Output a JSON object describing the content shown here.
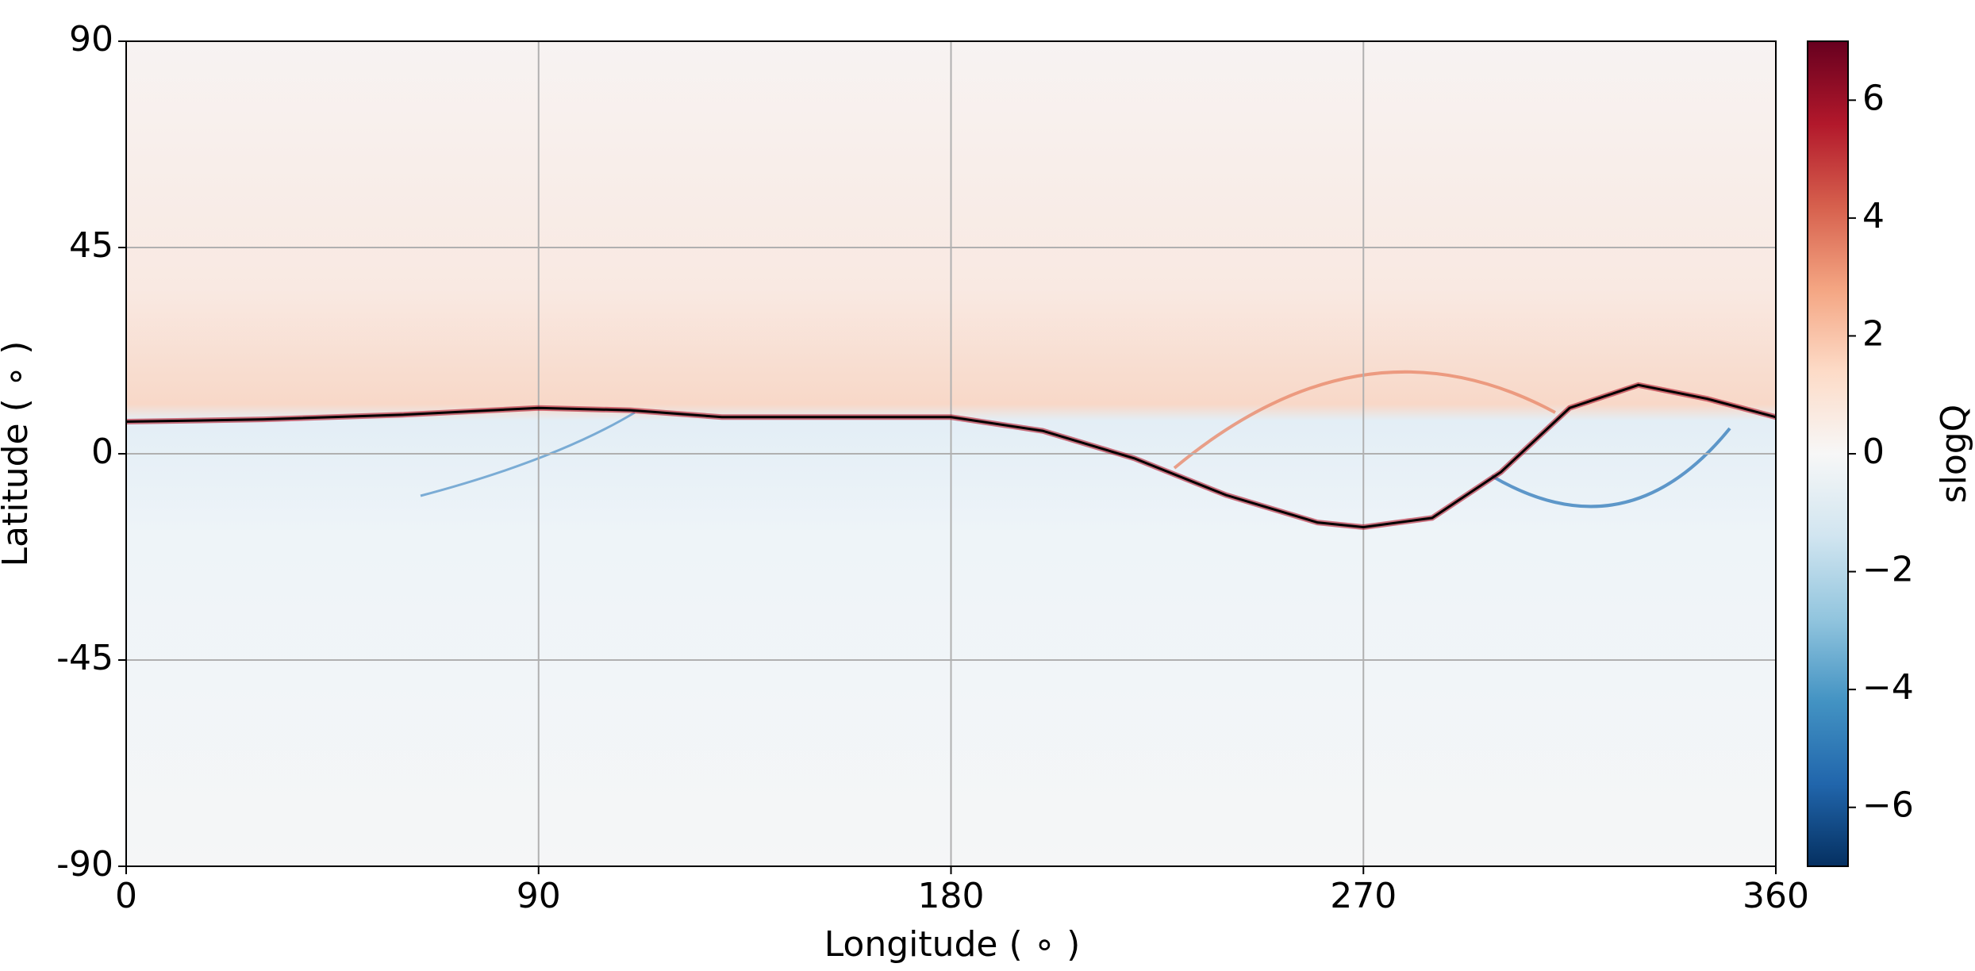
{
  "chart_data": {
    "type": "image",
    "xlabel": "Longitude ( ∘ )",
    "ylabel": "Latitude ( ∘ )",
    "xlim": [
      0,
      360
    ],
    "xticks": [
      0,
      90,
      180,
      270,
      360
    ],
    "ylim": [
      -90,
      90
    ],
    "yticks": [
      90,
      45,
      0,
      -45,
      -90
    ],
    "grid": true,
    "line": {
      "color": "#000000",
      "x": [
        0,
        30,
        60,
        90,
        110,
        130,
        180,
        200,
        220,
        240,
        260,
        270,
        285,
        300,
        315,
        330,
        345,
        360
      ],
      "y": [
        7,
        7.5,
        8.5,
        10,
        9.5,
        8,
        8,
        5,
        -1,
        -9,
        -15,
        -16,
        -14,
        -4,
        10,
        15,
        12,
        8
      ]
    },
    "colorbar": {
      "label": "slogQ",
      "lim": [
        -7,
        7
      ],
      "ticks": [
        {
          "value": -6,
          "label": "−6"
        },
        {
          "value": -4,
          "label": "−4"
        },
        {
          "value": -2,
          "label": "−2"
        },
        0,
        2,
        4,
        6
      ],
      "colors": [
        "#053061",
        "#2166ac",
        "#4393c3",
        "#92c5de",
        "#d1e5f0",
        "#f7f7f7",
        "#fddbc7",
        "#f4a582",
        "#d6604d",
        "#b2182b",
        "#67001f"
      ]
    }
  }
}
